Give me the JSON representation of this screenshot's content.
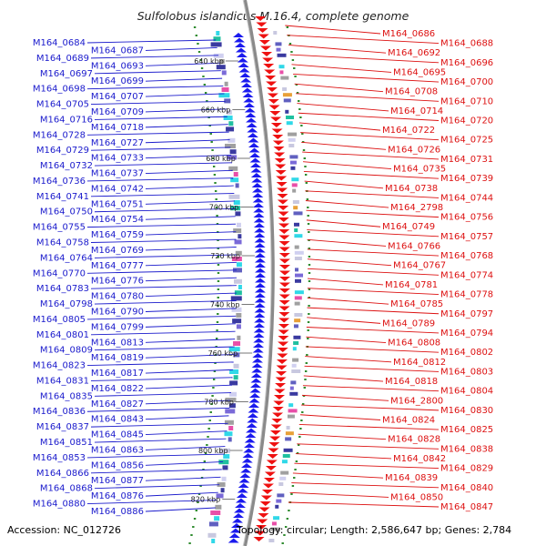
{
  "map": {
    "title": "Sulfolobus islandicus M.16.4, complete genome",
    "accession": "Accession: NC_012726",
    "summary": "Topology: circular; Length: 2,586,647 bp; Genes: 2,784",
    "colors": {
      "left_labels": "#1a1acc",
      "right_labels": "#dd1111",
      "backbone": "#8a8a8a",
      "gc_ticks": "#2e8b2e",
      "left_genes": "#1a1aee",
      "right_genes": "#ee1111"
    },
    "scale_marks": [
      {
        "label": "640 kbp"
      },
      {
        "label": "660 kbp"
      },
      {
        "label": "680 kbp"
      },
      {
        "label": "700 kbp"
      },
      {
        "label": "720 kbp"
      },
      {
        "label": "740 kbp"
      },
      {
        "label": "760 kbp"
      },
      {
        "label": "780 kbp"
      },
      {
        "label": "800 kbp"
      },
      {
        "label": "820 kbp"
      }
    ],
    "left_genes": [
      "M164_0684",
      "M164_0687",
      "M164_0689",
      "M164_0693",
      "M164_0697",
      "M164_0699",
      "M164_0698",
      "M164_0707",
      "M164_0705",
      "M164_0709",
      "M164_0716",
      "M164_0718",
      "M164_0728",
      "M164_0727",
      "M164_0729",
      "M164_0733",
      "M164_0732",
      "M164_0737",
      "M164_0736",
      "M164_0742",
      "M164_0741",
      "M164_0751",
      "M164_0750",
      "M164_0754",
      "M164_0755",
      "M164_0759",
      "M164_0758",
      "M164_0769",
      "M164_0764",
      "M164_0777",
      "M164_0770",
      "M164_0776",
      "M164_0783",
      "M164_0780",
      "M164_0798",
      "M164_0790",
      "M164_0805",
      "M164_0799",
      "M164_0801",
      "M164_0813",
      "M164_0809",
      "M164_0819",
      "M164_0823",
      "M164_0817",
      "M164_0831",
      "M164_0822",
      "M164_0835",
      "M164_0827",
      "M164_0836",
      "M164_0843",
      "M164_0837",
      "M164_0845",
      "M164_0851",
      "M164_0863",
      "M164_0853",
      "M164_0856",
      "M164_0866",
      "M164_0877",
      "M164_0868",
      "M164_0876",
      "M164_0880",
      "M164_0886"
    ],
    "right_genes": [
      "M164_0686",
      "M164_0688",
      "M164_0692",
      "M164_0696",
      "M164_0695",
      "M164_0700",
      "M164_0708",
      "M164_0710",
      "M164_0714",
      "M164_0720",
      "M164_0722",
      "M164_0725",
      "M164_0726",
      "M164_0731",
      "M164_0735",
      "M164_0739",
      "M164_0738",
      "M164_0744",
      "M164_2798",
      "M164_0756",
      "M164_0749",
      "M164_0757",
      "M164_0766",
      "M164_0768",
      "M164_0767",
      "M164_0774",
      "M164_0781",
      "M164_0778",
      "M164_0785",
      "M164_0797",
      "M164_0789",
      "M164_0794",
      "M164_0808",
      "M164_0802",
      "M164_0812",
      "M164_0803",
      "M164_0818",
      "M164_0804",
      "M164_2800",
      "M164_0830",
      "M164_0824",
      "M164_0825",
      "M164_0828",
      "M164_0838",
      "M164_0842",
      "M164_0829",
      "M164_0839",
      "M164_0840",
      "M164_0850",
      "M164_0847"
    ]
  }
}
